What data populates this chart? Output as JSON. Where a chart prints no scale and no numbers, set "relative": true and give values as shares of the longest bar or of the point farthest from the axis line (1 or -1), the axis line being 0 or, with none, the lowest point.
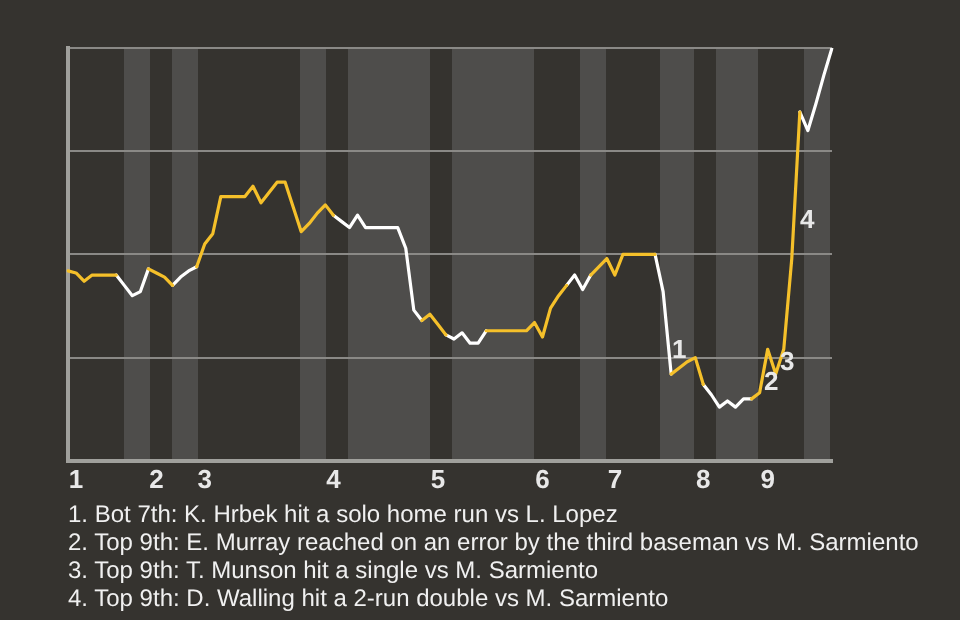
{
  "chart_data": {
    "type": "line",
    "categories": [
      null,
      "1",
      null,
      null,
      null,
      null,
      null,
      null,
      null,
      null,
      null,
      "2",
      null,
      null,
      null,
      null,
      null,
      "3",
      null,
      null,
      null,
      null,
      null,
      null,
      null,
      null,
      null,
      null,
      null,
      null,
      null,
      null,
      null,
      "4",
      null,
      null,
      null,
      null,
      null,
      null,
      null,
      null,
      null,
      null,
      null,
      null,
      "5",
      null,
      null,
      null,
      null,
      null,
      null,
      null,
      null,
      null,
      null,
      null,
      null,
      "6",
      null,
      null,
      null,
      null,
      null,
      null,
      null,
      null,
      "7",
      null,
      null,
      null,
      null,
      null,
      null,
      null,
      null,
      null,
      null,
      "8",
      null,
      null,
      null,
      null,
      null,
      null,
      null,
      "9",
      null,
      null,
      null,
      null,
      null,
      null,
      null,
      null
    ],
    "series": [
      {
        "color": "#f5c02a",
        "values": [
          -0.08,
          -0.09,
          -0.13,
          -0.1,
          -0.1,
          -0.1,
          -0.1,
          null,
          null,
          null,
          -0.07,
          -0.09,
          -0.11,
          -0.15,
          null,
          null,
          -0.06,
          0.05,
          0.1,
          0.28,
          0.28,
          0.28,
          0.28,
          0.33,
          0.25,
          0.3,
          0.35,
          0.35,
          0.23,
          0.11,
          0.15,
          0.2,
          0.24,
          0.19,
          null,
          null,
          null,
          null,
          null,
          null,
          null,
          null,
          null,
          null,
          -0.32,
          -0.29,
          -0.34,
          -0.39,
          null,
          null,
          null,
          null,
          -0.37,
          -0.37,
          -0.37,
          -0.37,
          -0.37,
          -0.37,
          -0.33,
          -0.4,
          -0.26,
          -0.2,
          -0.15,
          null,
          null,
          -0.1,
          -0.06,
          -0.02,
          -0.1,
          0,
          0,
          0,
          0,
          0,
          null,
          -0.58,
          -0.55,
          -0.52,
          -0.5,
          -0.63,
          null,
          null,
          null,
          null,
          null,
          -0.7,
          -0.67,
          -0.46,
          -0.58,
          -0.46,
          -0.02,
          0.69,
          null,
          null,
          null,
          null
        ]
      },
      {
        "color": "#ffffff",
        "values": [
          null,
          null,
          null,
          null,
          null,
          null,
          -0.1,
          -0.15,
          -0.2,
          -0.18,
          -0.07,
          null,
          null,
          -0.15,
          -0.11,
          -0.08,
          -0.06,
          null,
          null,
          null,
          null,
          null,
          null,
          null,
          null,
          null,
          null,
          null,
          null,
          null,
          null,
          null,
          null,
          0.19,
          0.16,
          0.13,
          0.19,
          0.13,
          0.13,
          0.13,
          0.13,
          0.13,
          0.03,
          -0.27,
          -0.32,
          null,
          null,
          -0.39,
          -0.41,
          -0.38,
          -0.43,
          -0.43,
          -0.37,
          null,
          null,
          null,
          null,
          null,
          null,
          null,
          null,
          null,
          -0.15,
          -0.1,
          -0.17,
          -0.1,
          null,
          null,
          null,
          null,
          null,
          null,
          null,
          0,
          -0.18,
          -0.58,
          null,
          null,
          null,
          -0.63,
          -0.68,
          -0.74,
          -0.71,
          -0.74,
          -0.7,
          -0.7,
          null,
          null,
          null,
          null,
          null,
          0.69,
          0.6,
          0.73,
          0.87,
          1
        ]
      }
    ],
    "relative": true,
    "grid": "y",
    "marker": "none",
    "line_style": "solid",
    "annotations": [
      "1",
      "2",
      "3",
      "4",
      "1. Bot 7th: K. Hrbek hit a solo home run vs L. Lopez",
      "2. Top 9th: E. Murray reached on an error by the third baseman vs M. Sarmiento",
      "3. Top 9th: T. Munson hit a single vs M. Sarmiento",
      "4. Top 9th: D. Walling hit a 2-run double vs M. Sarmiento"
    ]
  }
}
